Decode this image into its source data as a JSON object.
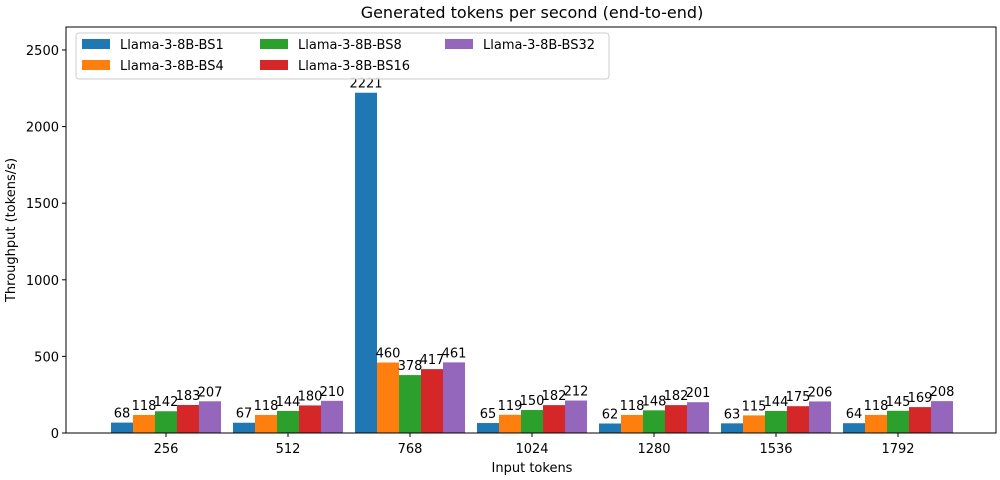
{
  "chart_data": {
    "type": "bar",
    "title": "Generated tokens per second (end-to-end)",
    "xlabel": "Input tokens",
    "ylabel": "Throughput (tokens/s)",
    "categories": [
      "256",
      "512",
      "768",
      "1024",
      "1280",
      "1536",
      "1792"
    ],
    "ylim": [
      0,
      2650
    ],
    "yticks": [
      0,
      500,
      1000,
      1500,
      2000,
      2500
    ],
    "grid": false,
    "legend_position": "top-left",
    "series": [
      {
        "name": "Llama-3-8B-BS1",
        "color": "#1f77b4",
        "values": [
          68,
          67,
          2221,
          65,
          62,
          63,
          64
        ]
      },
      {
        "name": "Llama-3-8B-BS4",
        "color": "#ff7f0e",
        "values": [
          118,
          118,
          460,
          119,
          118,
          115,
          118
        ]
      },
      {
        "name": "Llama-3-8B-BS8",
        "color": "#2ca02c",
        "values": [
          142,
          144,
          378,
          150,
          148,
          144,
          145
        ]
      },
      {
        "name": "Llama-3-8B-BS16",
        "color": "#d62728",
        "values": [
          183,
          180,
          417,
          182,
          182,
          175,
          169
        ]
      },
      {
        "name": "Llama-3-8B-BS32",
        "color": "#9467bd",
        "values": [
          207,
          210,
          461,
          212,
          201,
          206,
          208
        ]
      }
    ]
  }
}
